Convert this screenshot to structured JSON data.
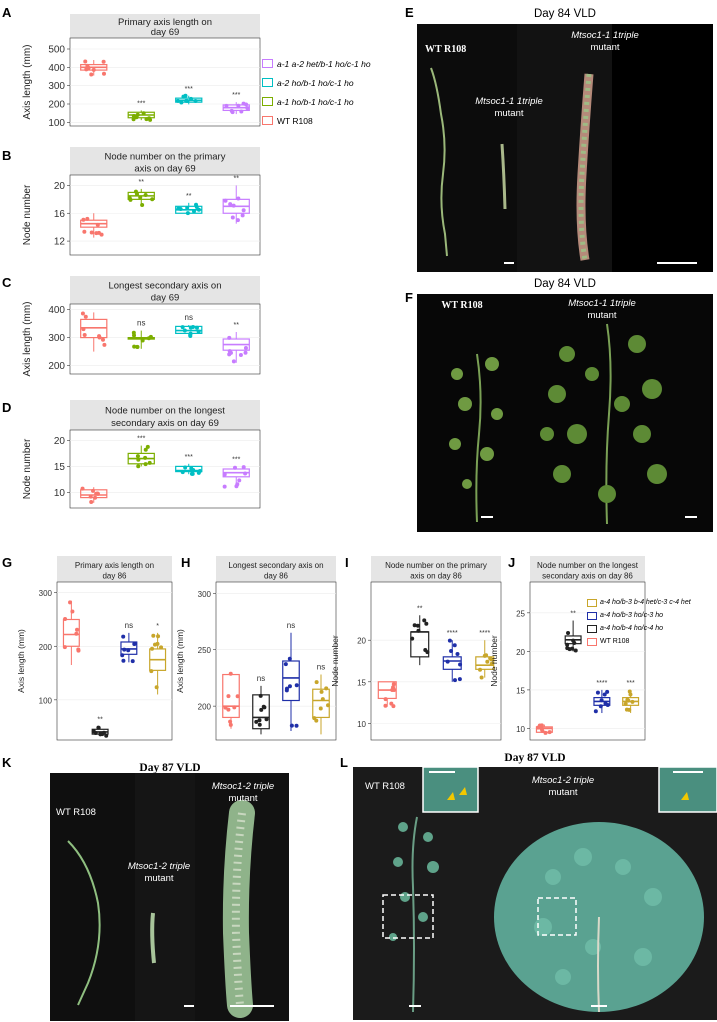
{
  "panel_letters": {
    "A": "A",
    "B": "B",
    "C": "C",
    "D": "D",
    "E": "E",
    "F": "F",
    "G": "G",
    "H": "H",
    "I": "I",
    "J": "J",
    "K": "K",
    "L": "L"
  },
  "legend_top": {
    "entries": [
      {
        "label": "a-1 a-2 het/b-1 ho/c-1 ho",
        "color": "#C77CFF"
      },
      {
        "label": "a-2 ho/b-1 ho/c-1 ho",
        "color": "#00BFC4"
      },
      {
        "label": "a-1 ho/b-1 ho/c-1 ho",
        "color": "#7CAE00"
      },
      {
        "label": "WT R108",
        "color": "#F8766D"
      }
    ]
  },
  "legend_bottom": {
    "entries": [
      {
        "label": "a-4 ho/b-3 b-4 het/c-3 c-4 het",
        "color": "#C8A62B"
      },
      {
        "label": "a-4 ho/b-3 ho/c-3 ho",
        "color": "#1F2FA8"
      },
      {
        "label": "a-4 ho/b-4 ho/c-4 ho",
        "color": "#222222"
      },
      {
        "label": "WT R108",
        "color": "#F8766D"
      }
    ]
  },
  "chart_data": [
    {
      "id": "A",
      "type": "box",
      "title": "Primary axis length on day 69",
      "ylabel": "Axis length (mm)",
      "yticks": [
        100,
        200,
        300,
        400,
        500
      ],
      "ylim": [
        80,
        560
      ],
      "groups": [
        {
          "series": "WT R108",
          "color": "#F8766D",
          "median": 400,
          "q1": 385,
          "q3": 415,
          "whisker_low": 355,
          "whisker_high": 440,
          "sig": ""
        },
        {
          "series": "a-1 ho/b-1 ho/c-1 ho",
          "color": "#7CAE00",
          "median": 140,
          "q1": 125,
          "q3": 155,
          "whisker_low": 112,
          "whisker_high": 165,
          "sig": "***"
        },
        {
          "series": "a-2 ho/b-1 ho/c-1 ho",
          "color": "#00BFC4",
          "median": 220,
          "q1": 210,
          "q3": 232,
          "whisker_low": 198,
          "whisker_high": 245,
          "sig": "***"
        },
        {
          "series": "a-1 a-2 het/b-1 ho/c-1 ho",
          "color": "#C77CFF",
          "median": 180,
          "q1": 165,
          "q3": 195,
          "whisker_low": 145,
          "whisker_high": 210,
          "sig": "***"
        }
      ]
    },
    {
      "id": "B",
      "type": "box",
      "title": "Node number on the primary axis on day 69",
      "ylabel": "Node number",
      "yticks": [
        12,
        16,
        20
      ],
      "ylim": [
        10,
        21.5
      ],
      "groups": [
        {
          "series": "WT R108",
          "color": "#F8766D",
          "median": 14.5,
          "q1": 14,
          "q3": 15,
          "whisker_low": 12.5,
          "whisker_high": 16,
          "sig": ""
        },
        {
          "series": "a-1 ho/b-1 ho/c-1 ho",
          "color": "#7CAE00",
          "median": 18.5,
          "q1": 18,
          "q3": 19,
          "whisker_low": 17,
          "whisker_high": 19.5,
          "sig": "**"
        },
        {
          "series": "a-2 ho/b-1 ho/c-1 ho",
          "color": "#00BFC4",
          "median": 16.5,
          "q1": 16,
          "q3": 17,
          "whisker_low": 16,
          "whisker_high": 17.5,
          "sig": "**"
        },
        {
          "series": "a-1 a-2 het/b-1 ho/c-1 ho",
          "color": "#C77CFF",
          "median": 17,
          "q1": 16,
          "q3": 18,
          "whisker_low": 14.5,
          "whisker_high": 20,
          "sig": "**"
        }
      ]
    },
    {
      "id": "C",
      "type": "box",
      "title": "Longest secondary axis on day 69",
      "ylabel": "Axis length (mm)",
      "yticks": [
        200,
        300,
        400
      ],
      "ylim": [
        170,
        420
      ],
      "groups": [
        {
          "series": "WT R108",
          "color": "#F8766D",
          "median": 335,
          "q1": 300,
          "q3": 365,
          "whisker_low": 250,
          "whisker_high": 390,
          "sig": ""
        },
        {
          "series": "a-1 ho/b-1 ho/c-1 ho",
          "color": "#7CAE00",
          "median": 297,
          "q1": 295,
          "q3": 300,
          "whisker_low": 260,
          "whisker_high": 325,
          "sig": "ns"
        },
        {
          "series": "a-2 ho/b-1 ho/c-1 ho",
          "color": "#00BFC4",
          "median": 325,
          "q1": 315,
          "q3": 340,
          "whisker_low": 305,
          "whisker_high": 345,
          "sig": "ns"
        },
        {
          "series": "a-1 a-2 het/b-1 ho/c-1 ho",
          "color": "#C77CFF",
          "median": 275,
          "q1": 255,
          "q3": 295,
          "whisker_low": 210,
          "whisker_high": 320,
          "sig": "**"
        }
      ]
    },
    {
      "id": "D",
      "type": "box",
      "title": "Node number on the longest secondary axis on day 69",
      "ylabel": "Node number",
      "yticks": [
        10,
        15,
        20
      ],
      "ylim": [
        7,
        22
      ],
      "groups": [
        {
          "series": "WT R108",
          "color": "#F8766D",
          "median": 9.5,
          "q1": 9,
          "q3": 10.5,
          "whisker_low": 8,
          "whisker_high": 11,
          "sig": ""
        },
        {
          "series": "a-1 ho/b-1 ho/c-1 ho",
          "color": "#7CAE00",
          "median": 16.5,
          "q1": 15.5,
          "q3": 17.5,
          "whisker_low": 15,
          "whisker_high": 19,
          "sig": "***"
        },
        {
          "series": "a-2 ho/b-1 ho/c-1 ho",
          "color": "#00BFC4",
          "median": 14.2,
          "q1": 14,
          "q3": 15,
          "whisker_low": 13.5,
          "whisker_high": 15.5,
          "sig": "***"
        },
        {
          "series": "a-1 a-2 het/b-1 ho/c-1 ho",
          "color": "#C77CFF",
          "median": 13.8,
          "q1": 13,
          "q3": 14.5,
          "whisker_low": 11,
          "whisker_high": 15,
          "sig": "***"
        }
      ]
    },
    {
      "id": "G",
      "type": "box",
      "title": "Primary axis length on day 86",
      "ylabel": "Axis length (mm)",
      "yticks": [
        100,
        200,
        300
      ],
      "ylim": [
        25,
        320
      ],
      "groups": [
        {
          "series": "WT R108",
          "color": "#F8766D",
          "median": 222,
          "q1": 200,
          "q3": 250,
          "whisker_low": 165,
          "whisker_high": 285,
          "sig": ""
        },
        {
          "series": "a-4 ho/b-4 ho/c-4 ho",
          "color": "#222222",
          "median": 40,
          "q1": 36,
          "q3": 45,
          "whisker_low": 32,
          "whisker_high": 50,
          "sig": "**"
        },
        {
          "series": "a-4 ho/b-3 ho/c-3 ho",
          "color": "#1F2FA8",
          "median": 195,
          "q1": 185,
          "q3": 208,
          "whisker_low": 170,
          "whisker_high": 225,
          "sig": "ns"
        },
        {
          "series": "a-4 ho/b-3 b-4 het/c-3 c-4 het",
          "color": "#C8A62B",
          "median": 175,
          "q1": 155,
          "q3": 195,
          "whisker_low": 110,
          "whisker_high": 225,
          "sig": "*"
        }
      ]
    },
    {
      "id": "H",
      "type": "box",
      "title": "Longest secondary axis on day 86",
      "ylabel": "Axis length (mm)",
      "yticks": [
        200,
        250,
        300
      ],
      "ylim": [
        170,
        310
      ],
      "groups": [
        {
          "series": "WT R108",
          "color": "#F8766D",
          "median": 200,
          "q1": 190,
          "q3": 228,
          "whisker_low": 180,
          "whisker_high": 230,
          "sig": ""
        },
        {
          "series": "a-4 ho/b-4 ho/c-4 ho",
          "color": "#222222",
          "median": 190,
          "q1": 180,
          "q3": 210,
          "whisker_low": 175,
          "whisker_high": 218,
          "sig": "ns"
        },
        {
          "series": "a-4 ho/b-3 ho/c-3 ho",
          "color": "#1F2FA8",
          "median": 225,
          "q1": 205,
          "q3": 240,
          "whisker_low": 178,
          "whisker_high": 265,
          "sig": "ns"
        },
        {
          "series": "a-4 ho/b-3 b-4 het/c-3 c-4 het",
          "color": "#C8A62B",
          "median": 205,
          "q1": 190,
          "q3": 215,
          "whisker_low": 175,
          "whisker_high": 228,
          "sig": "ns"
        }
      ]
    },
    {
      "id": "I",
      "type": "box",
      "title": "Node number on the primary axis on day 86",
      "ylabel": "Node number",
      "yticks": [
        10,
        15,
        20
      ],
      "ylim": [
        8,
        27
      ],
      "groups": [
        {
          "series": "WT R108",
          "color": "#F8766D",
          "median": 14,
          "q1": 13,
          "q3": 15,
          "whisker_low": 12,
          "whisker_high": 15,
          "sig": ""
        },
        {
          "series": "a-4 ho/b-4 ho/c-4 ho",
          "color": "#222222",
          "median": 21,
          "q1": 18,
          "q3": 21,
          "whisker_low": 17,
          "whisker_high": 23,
          "sig": "**"
        },
        {
          "series": "a-4 ho/b-3 ho/c-3 ho",
          "color": "#1F2FA8",
          "median": 17.5,
          "q1": 16.5,
          "q3": 18,
          "whisker_low": 15,
          "whisker_high": 20,
          "sig": "****"
        },
        {
          "series": "a-4 ho/b-3 b-4 het/c-3 c-4 het",
          "color": "#C8A62B",
          "median": 17,
          "q1": 16.5,
          "q3": 18,
          "whisker_low": 15.5,
          "whisker_high": 20,
          "sig": "****"
        }
      ]
    },
    {
      "id": "J",
      "type": "box",
      "title": "Node number on the longest secondary axis on day 86",
      "ylabel": "Node number",
      "yticks": [
        10,
        15,
        20,
        25
      ],
      "ylim": [
        8.5,
        29
      ],
      "groups": [
        {
          "series": "WT R108",
          "color": "#F8766D",
          "median": 10,
          "q1": 9.5,
          "q3": 10.2,
          "whisker_low": 9.2,
          "whisker_high": 10.5,
          "sig": ""
        },
        {
          "series": "a-4 ho/b-4 ho/c-4 ho",
          "color": "#222222",
          "median": 21.5,
          "q1": 21,
          "q3": 22,
          "whisker_low": 20,
          "whisker_high": 24,
          "sig": "**"
        },
        {
          "series": "a-4 ho/b-3 ho/c-3 ho",
          "color": "#1F2FA8",
          "median": 13.5,
          "q1": 13,
          "q3": 14,
          "whisker_low": 12,
          "whisker_high": 15,
          "sig": "****"
        },
        {
          "series": "a-4 ho/b-3 b-4 het/c-3 c-4 het",
          "color": "#C8A62B",
          "median": 13.5,
          "q1": 13,
          "q3": 14,
          "whisker_low": 12,
          "whisker_high": 15,
          "sig": "***"
        }
      ]
    }
  ],
  "photos": {
    "E": {
      "title": "Day 84 VLD",
      "wt": "WT R108",
      "mutant_a": "Mtsoc1-1 1triple",
      "mutant_a2": "mutant",
      "mutant_b": "Mtsoc1-1 1triple",
      "mutant_b2": "mutant"
    },
    "F": {
      "title": "Day 84 VLD",
      "wt": "WT R108",
      "mutant": "Mtsoc1-1 1triple",
      "mutant2": "mutant"
    },
    "K": {
      "title": "Day 87 VLD",
      "wt": "WT R108",
      "mutant_a": "Mtsoc1-2 triple",
      "mutant_a2": "mutant",
      "mutant_b": "Mtsoc1-2 triple",
      "mutant_b2": "mutant"
    },
    "L": {
      "title": "Day 87 VLD",
      "wt": "WT R108",
      "mutant": "Mtsoc1-2 triple",
      "mutant2": "mutant"
    }
  }
}
